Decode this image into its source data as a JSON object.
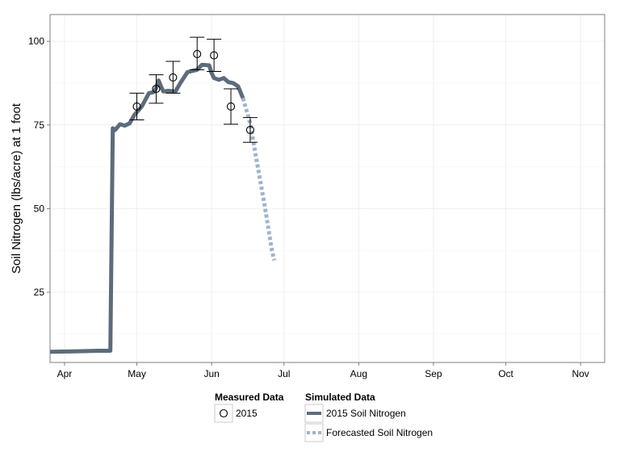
{
  "chart_data": {
    "type": "line",
    "title": "",
    "xlabel": "",
    "ylabel": "Soil Nitrogen (lbs/acre) at 1 foot",
    "xlim": [
      "2015-03-26",
      "2015-11-11"
    ],
    "ylim": [
      4,
      108
    ],
    "yticks": [
      25,
      50,
      75,
      100
    ],
    "xticks": [
      {
        "date": "2015-04-01",
        "label": "Apr"
      },
      {
        "date": "2015-05-01",
        "label": "May"
      },
      {
        "date": "2015-06-01",
        "label": "Jun"
      },
      {
        "date": "2015-07-01",
        "label": "Jul"
      },
      {
        "date": "2015-08-01",
        "label": "Aug"
      },
      {
        "date": "2015-09-01",
        "label": "Sep"
      },
      {
        "date": "2015-10-01",
        "label": "Oct"
      },
      {
        "date": "2015-11-01",
        "label": "Nov"
      }
    ],
    "grid": true,
    "legend_position": "bottom",
    "colors": {
      "simulated": "#5d6b7b",
      "forecast": "#9fb4cc",
      "measured": "#000000",
      "grid": "#ebebeb",
      "frame": "#7f7f7f"
    },
    "measured": {
      "legend_title": "Measured Data",
      "name": "2015",
      "points": [
        {
          "x": "2015-05-01",
          "y": 80.5,
          "ymin": 76.5,
          "ymax": 84.5
        },
        {
          "x": "2015-05-09",
          "y": 85.8,
          "ymin": 81.5,
          "ymax": 90.0
        },
        {
          "x": "2015-05-16",
          "y": 89.2,
          "ymin": 84.5,
          "ymax": 94.0
        },
        {
          "x": "2015-05-26",
          "y": 96.2,
          "ymin": 91.5,
          "ymax": 101.2
        },
        {
          "x": "2015-06-02",
          "y": 95.8,
          "ymin": 91.0,
          "ymax": 100.6
        },
        {
          "x": "2015-06-09",
          "y": 80.5,
          "ymin": 75.2,
          "ymax": 85.8
        },
        {
          "x": "2015-06-17",
          "y": 73.5,
          "ymin": 69.8,
          "ymax": 77.2
        }
      ]
    },
    "simulated": {
      "legend_title": "Simulated Data",
      "series": [
        {
          "name": "2015 Soil Nitrogen",
          "style": "solid",
          "points": [
            [
              "2015-03-26",
              7.2
            ],
            [
              "2015-04-05",
              7.3
            ],
            [
              "2015-04-15",
              7.5
            ],
            [
              "2015-04-20",
              7.5
            ],
            [
              "2015-04-21",
              74.0
            ],
            [
              "2015-04-22",
              73.5
            ],
            [
              "2015-04-24",
              75.2
            ],
            [
              "2015-04-26",
              74.8
            ],
            [
              "2015-04-28",
              75.5
            ],
            [
              "2015-04-30",
              78.0
            ],
            [
              "2015-05-03",
              80.5
            ],
            [
              "2015-05-06",
              84.5
            ],
            [
              "2015-05-08",
              84.8
            ],
            [
              "2015-05-09",
              86.0
            ],
            [
              "2015-05-10",
              88.3
            ],
            [
              "2015-05-11",
              86.5
            ],
            [
              "2015-05-12",
              85.0
            ],
            [
              "2015-05-14",
              85.2
            ],
            [
              "2015-05-17",
              85.0
            ],
            [
              "2015-05-19",
              87.5
            ],
            [
              "2015-05-22",
              90.8
            ],
            [
              "2015-05-26",
              91.5
            ],
            [
              "2015-05-28",
              93.0
            ],
            [
              "2015-05-31",
              92.8
            ],
            [
              "2015-06-01",
              90.5
            ],
            [
              "2015-06-02",
              89.0
            ],
            [
              "2015-06-04",
              88.5
            ],
            [
              "2015-06-06",
              89.0
            ],
            [
              "2015-06-08",
              87.8
            ],
            [
              "2015-06-10",
              87.5
            ],
            [
              "2015-06-12",
              86.5
            ],
            [
              "2015-06-14",
              83.0
            ]
          ]
        },
        {
          "name": "Forecasted Soil Nitrogen",
          "style": "dotted",
          "points": [
            [
              "2015-06-14",
              83.0
            ],
            [
              "2015-06-17",
              75.5
            ],
            [
              "2015-06-20",
              63.0
            ],
            [
              "2015-06-23",
              51.0
            ],
            [
              "2015-06-26",
              37.5
            ],
            [
              "2015-06-27",
              34.5
            ]
          ]
        }
      ]
    }
  }
}
